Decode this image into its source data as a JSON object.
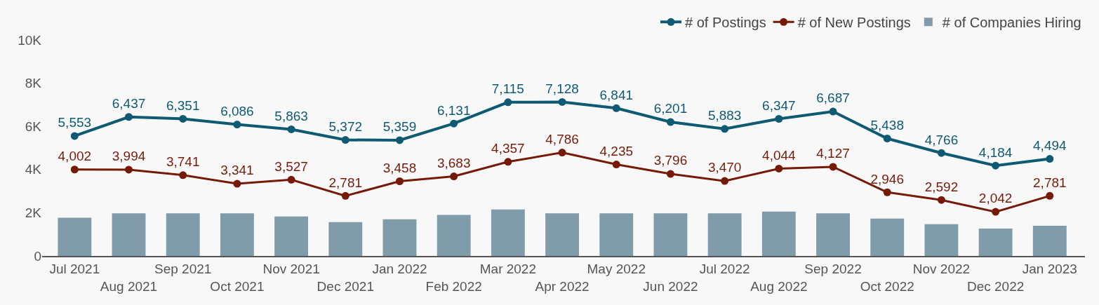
{
  "chart_data": {
    "type": "line",
    "categories": [
      "Jul 2021",
      "Aug 2021",
      "Sep 2021",
      "Oct 2021",
      "Nov 2021",
      "Dec 2021",
      "Jan 2022",
      "Feb 2022",
      "Mar 2022",
      "Apr 2022",
      "May 2022",
      "Jun 2022",
      "Jul 2022",
      "Aug 2022",
      "Sep 2022",
      "Oct 2022",
      "Nov 2022",
      "Dec 2022",
      "Jan 2023"
    ],
    "series": [
      {
        "name": "# of Postings",
        "color": "#0e5a72",
        "values": [
          5553,
          6437,
          6351,
          6086,
          5863,
          5372,
          5359,
          6131,
          7115,
          7128,
          6841,
          6201,
          5883,
          6347,
          6687,
          5438,
          4766,
          4184,
          4494
        ],
        "value_labels": [
          "5,553",
          "6,437",
          "6,351",
          "6,086",
          "5,863",
          "5,372",
          "5,359",
          "6,131",
          "7,115",
          "7,128",
          "6,841",
          "6,201",
          "5,883",
          "6,347",
          "6,687",
          "5,438",
          "4,766",
          "4,184",
          "4,494"
        ]
      },
      {
        "name": "# of New Postings",
        "color": "#761a08",
        "values": [
          4002,
          3994,
          3741,
          3341,
          3527,
          2781,
          3458,
          3683,
          4357,
          4786,
          4235,
          3796,
          3470,
          4044,
          4127,
          2946,
          2592,
          2042,
          2781
        ],
        "value_labels": [
          "4,002",
          "3,994",
          "3,741",
          "3,341",
          "3,527",
          "2,781",
          "3,458",
          "3,683",
          "4,357",
          "4,786",
          "4,235",
          "3,796",
          "3,470",
          "4,044",
          "4,127",
          "2,946",
          "2,592",
          "2,042",
          "2,781"
        ]
      },
      {
        "name": "# of Companies Hiring",
        "type": "bar",
        "color": "#809ba9",
        "values": [
          1770,
          1970,
          1970,
          1970,
          1830,
          1570,
          1700,
          1900,
          2150,
          1970,
          1970,
          1970,
          1970,
          2050,
          1970,
          1730,
          1470,
          1270,
          1400
        ]
      }
    ],
    "ylim": [
      0,
      10000
    ],
    "yticks": [
      0,
      {
        "value": 2000,
        "label": "2K"
      },
      {
        "value": 4000,
        "label": "4K"
      },
      {
        "value": 6000,
        "label": "6K"
      },
      {
        "value": 8000,
        "label": "8K"
      },
      {
        "value": 10000,
        "label": "10K"
      }
    ],
    "marker": "circle",
    "legend": "top right"
  }
}
